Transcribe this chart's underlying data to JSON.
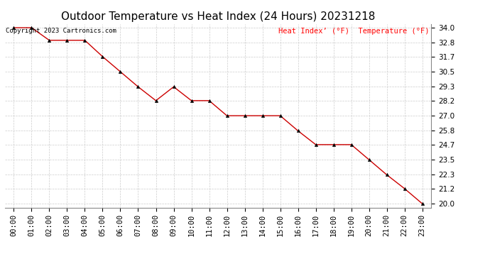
{
  "title": "Outdoor Temperature vs Heat Index (24 Hours) 20231218",
  "copyright": "Copyright 2023 Cartronics.com",
  "legend_text": "Heat Index’ (°F)  Temperature (°F)",
  "x_labels": [
    "00:00",
    "01:00",
    "02:00",
    "03:00",
    "04:00",
    "05:00",
    "06:00",
    "07:00",
    "08:00",
    "09:00",
    "10:00",
    "11:00",
    "12:00",
    "13:00",
    "14:00",
    "15:00",
    "16:00",
    "17:00",
    "18:00",
    "19:00",
    "20:00",
    "21:00",
    "22:00",
    "23:00"
  ],
  "temperature": [
    34.0,
    34.0,
    33.0,
    33.0,
    33.0,
    31.7,
    30.5,
    29.3,
    28.2,
    29.3,
    28.2,
    28.2,
    27.0,
    27.0,
    27.0,
    27.0,
    25.8,
    24.7,
    24.7,
    24.7,
    23.5,
    22.3,
    21.2,
    20.0
  ],
  "temp_color": "#cc0000",
  "ylim_min": 19.7,
  "ylim_max": 34.3,
  "yticks": [
    34.0,
    32.8,
    31.7,
    30.5,
    29.3,
    28.2,
    27.0,
    25.8,
    24.7,
    23.5,
    22.3,
    21.2,
    20.0
  ],
  "bg_color": "#ffffff",
  "grid_color": "#cccccc",
  "title_fontsize": 11,
  "axis_fontsize": 7.5,
  "copyright_fontsize": 6.5,
  "legend_fontsize": 7.5
}
